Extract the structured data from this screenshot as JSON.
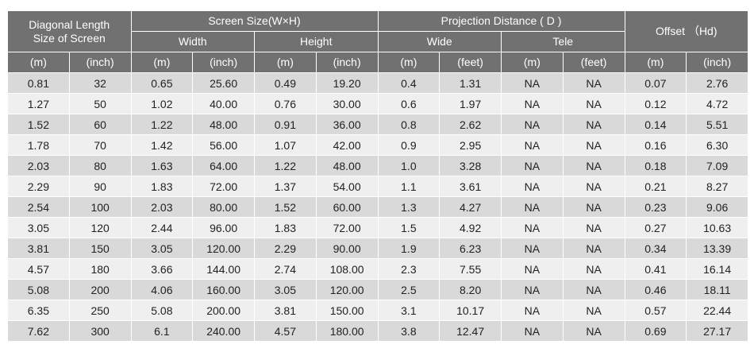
{
  "header": {
    "diagonal": [
      "Diagonal Length",
      "Size of Screen"
    ],
    "screen_size": "Screen Size(W×H)",
    "width": "Width",
    "height": "Height",
    "projection_distance": "Projection Distance ( D )",
    "wide": "Wide",
    "tele": "Tele",
    "offset": "Offset （Hd)"
  },
  "units": [
    "(m)",
    "(inch)",
    "(m)",
    "(inch)",
    "(m)",
    "(inch)",
    "(m)",
    "(feet)",
    "(m)",
    "(feet)",
    "(m)",
    "(inch)"
  ],
  "rows": [
    [
      "0.81",
      "32",
      "0.65",
      "25.60",
      "0.49",
      "19.20",
      "0.4",
      "1.31",
      "NA",
      "NA",
      "0.07",
      "2.76"
    ],
    [
      "1.27",
      "50",
      "1.02",
      "40.00",
      "0.76",
      "30.00",
      "0.6",
      "1.97",
      "NA",
      "NA",
      "0.12",
      "4.72"
    ],
    [
      "1.52",
      "60",
      "1.22",
      "48.00",
      "0.91",
      "36.00",
      "0.8",
      "2.62",
      "NA",
      "NA",
      "0.14",
      "5.51"
    ],
    [
      "1.78",
      "70",
      "1.42",
      "56.00",
      "1.07",
      "42.00",
      "0.9",
      "2.95",
      "NA",
      "NA",
      "0.16",
      "6.30"
    ],
    [
      "2.03",
      "80",
      "1.63",
      "64.00",
      "1.22",
      "48.00",
      "1.0",
      "3.28",
      "NA",
      "NA",
      "0.18",
      "7.09"
    ],
    [
      "2.29",
      "90",
      "1.83",
      "72.00",
      "1.37",
      "54.00",
      "1.1",
      "3.61",
      "NA",
      "NA",
      "0.21",
      "8.27"
    ],
    [
      "2.54",
      "100",
      "2.03",
      "80.00",
      "1.52",
      "60.00",
      "1.3",
      "4.27",
      "NA",
      "NA",
      "0.23",
      "9.06"
    ],
    [
      "3.05",
      "120",
      "2.44",
      "96.00",
      "1.83",
      "72.00",
      "1.5",
      "4.92",
      "NA",
      "NA",
      "0.27",
      "10.63"
    ],
    [
      "3.81",
      "150",
      "3.05",
      "120.00",
      "2.29",
      "90.00",
      "1.9",
      "6.23",
      "NA",
      "NA",
      "0.34",
      "13.39"
    ],
    [
      "4.57",
      "180",
      "3.66",
      "144.00",
      "2.74",
      "108.00",
      "2.3",
      "7.55",
      "NA",
      "NA",
      "0.41",
      "16.14"
    ],
    [
      "5.08",
      "200",
      "4.06",
      "160.00",
      "3.05",
      "120.00",
      "2.5",
      "8.20",
      "NA",
      "NA",
      "0.46",
      "18.11"
    ],
    [
      "6.35",
      "250",
      "5.08",
      "200.00",
      "3.81",
      "150.00",
      "3.1",
      "10.17",
      "NA",
      "NA",
      "0.57",
      "22.44"
    ],
    [
      "7.62",
      "300",
      "6.1",
      "240.00",
      "4.57",
      "180.00",
      "3.8",
      "12.47",
      "NA",
      "NA",
      "0.69",
      "27.17"
    ]
  ]
}
